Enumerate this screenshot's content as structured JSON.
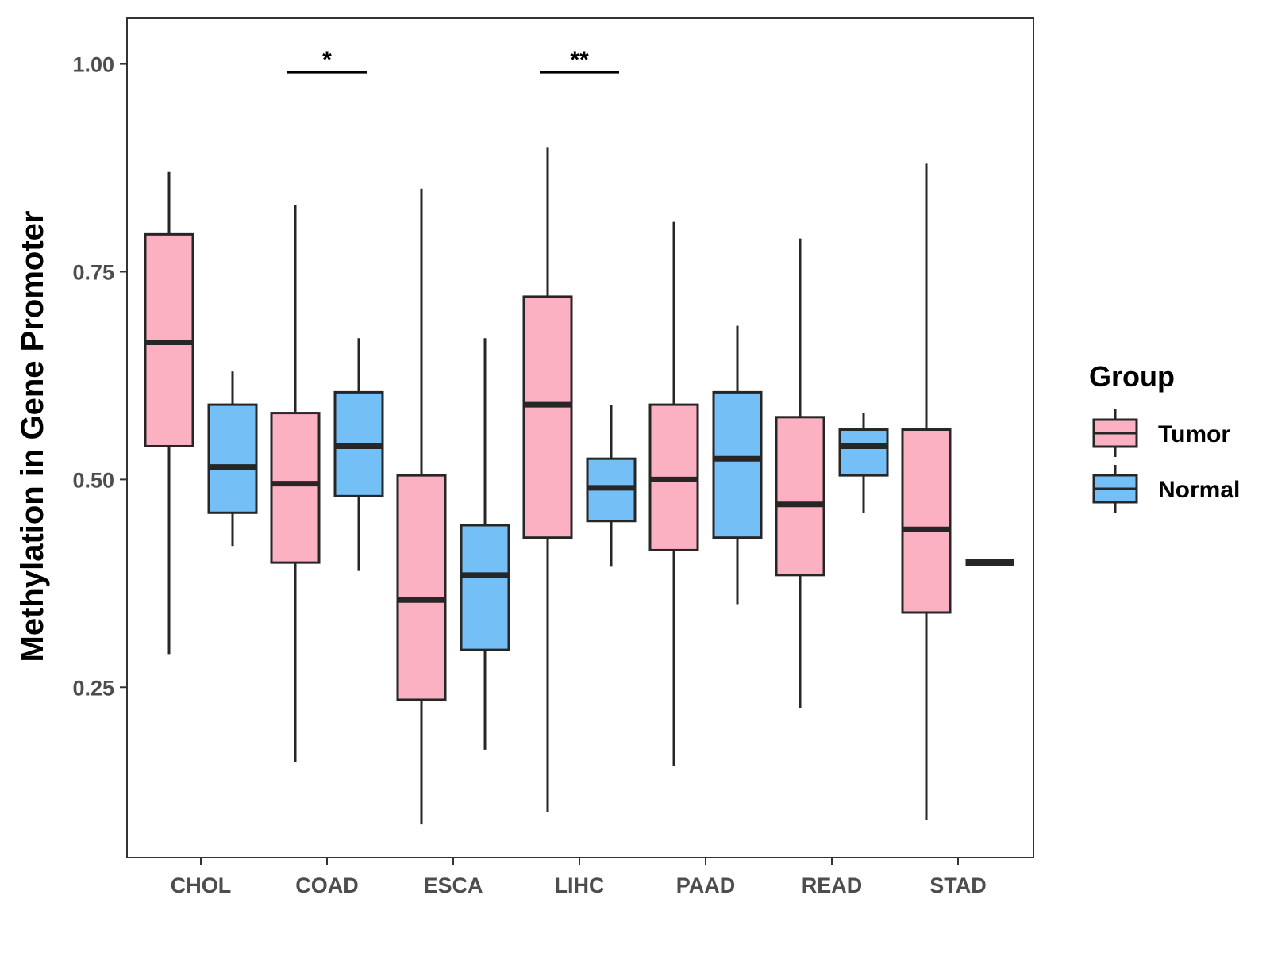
{
  "chart_data": {
    "type": "boxplot",
    "ylabel": "Methylation in Gene Promoter",
    "xlabel": "",
    "ylim": [
      0.045,
      1.055
    ],
    "yticks": [
      0.25,
      0.5,
      0.75,
      1.0
    ],
    "ytick_labels": [
      "0.25",
      "0.50",
      "0.75",
      "1.00"
    ],
    "categories": [
      "CHOL",
      "COAD",
      "ESCA",
      "LIHC",
      "PAAD",
      "READ",
      "STAD"
    ],
    "legend": {
      "title": "Group",
      "position": "right",
      "entries": [
        {
          "name": "Tumor",
          "color": "#fcb1c3"
        },
        {
          "name": "Normal",
          "color": "#75bff7"
        }
      ]
    },
    "series": [
      {
        "name": "Tumor",
        "color": "#fcb1c3",
        "boxes": [
          {
            "category": "CHOL",
            "whisker_low": 0.29,
            "q1": 0.54,
            "median": 0.665,
            "q3": 0.795,
            "whisker_high": 0.87
          },
          {
            "category": "COAD",
            "whisker_low": 0.16,
            "q1": 0.4,
            "median": 0.495,
            "q3": 0.58,
            "whisker_high": 0.83
          },
          {
            "category": "ESCA",
            "whisker_low": 0.085,
            "q1": 0.235,
            "median": 0.355,
            "q3": 0.505,
            "whisker_high": 0.85
          },
          {
            "category": "LIHC",
            "whisker_low": 0.1,
            "q1": 0.43,
            "median": 0.59,
            "q3": 0.72,
            "whisker_high": 0.9
          },
          {
            "category": "PAAD",
            "whisker_low": 0.155,
            "q1": 0.415,
            "median": 0.5,
            "q3": 0.59,
            "whisker_high": 0.81
          },
          {
            "category": "READ",
            "whisker_low": 0.225,
            "q1": 0.385,
            "median": 0.47,
            "q3": 0.575,
            "whisker_high": 0.79
          },
          {
            "category": "STAD",
            "whisker_low": 0.09,
            "q1": 0.34,
            "median": 0.44,
            "q3": 0.56,
            "whisker_high": 0.88
          }
        ]
      },
      {
        "name": "Normal",
        "color": "#75bff7",
        "boxes": [
          {
            "category": "CHOL",
            "whisker_low": 0.42,
            "q1": 0.46,
            "median": 0.515,
            "q3": 0.59,
            "whisker_high": 0.63
          },
          {
            "category": "COAD",
            "whisker_low": 0.39,
            "q1": 0.48,
            "median": 0.54,
            "q3": 0.605,
            "whisker_high": 0.67
          },
          {
            "category": "ESCA",
            "whisker_low": 0.175,
            "q1": 0.295,
            "median": 0.385,
            "q3": 0.445,
            "whisker_high": 0.67
          },
          {
            "category": "LIHC",
            "whisker_low": 0.395,
            "q1": 0.45,
            "median": 0.49,
            "q3": 0.525,
            "whisker_high": 0.59
          },
          {
            "category": "PAAD",
            "whisker_low": 0.35,
            "q1": 0.43,
            "median": 0.525,
            "q3": 0.605,
            "whisker_high": 0.685
          },
          {
            "category": "READ",
            "whisker_low": 0.46,
            "q1": 0.505,
            "median": 0.54,
            "q3": 0.56,
            "whisker_high": 0.58
          },
          {
            "category": "STAD",
            "whisker_low": 0.4,
            "q1": 0.4,
            "median": 0.4,
            "q3": 0.4,
            "whisker_high": 0.4
          }
        ]
      }
    ],
    "annotations": [
      {
        "category": "COAD",
        "y": 0.99,
        "label": "*"
      },
      {
        "category": "LIHC",
        "y": 0.99,
        "label": "**"
      }
    ]
  },
  "colors": {
    "outline": "#262626",
    "axis": "#333333",
    "tick_text": "#4d4d4d",
    "background": "#ffffff"
  }
}
